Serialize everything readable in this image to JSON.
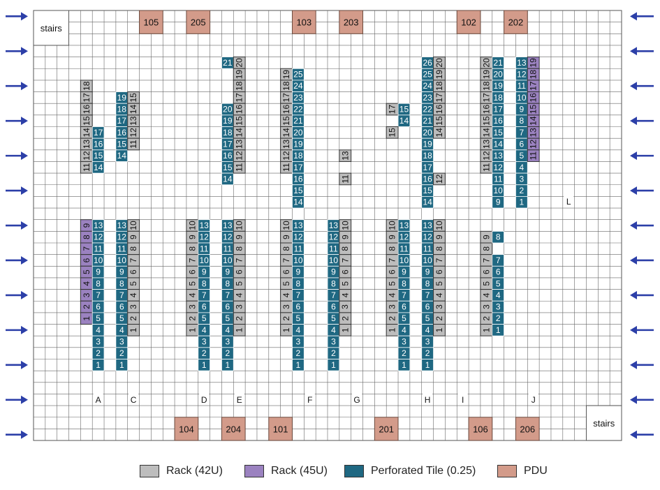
{
  "colors": {
    "rack42": "#bdbdbd",
    "rack45": "#9b82c0",
    "tile": "#1f6882",
    "pdu": "#d39b8a",
    "arrow": "#2c3fa8",
    "grid": "#555555"
  },
  "grid": {
    "cols": 50,
    "rows": 37
  },
  "labels": {
    "stairs_top": "stairs",
    "stairs_bottom": "stairs"
  },
  "legend": [
    {
      "key": "rack42",
      "label": "Rack (42U)"
    },
    {
      "key": "rack45",
      "label": "Rack (45U)"
    },
    {
      "key": "tile",
      "label": "Perforated Tile (0.25)"
    },
    {
      "key": "pdu",
      "label": "PDU"
    }
  ],
  "pdus_top": [
    {
      "label": "105",
      "col": 9
    },
    {
      "label": "205",
      "col": 13
    },
    {
      "label": "103",
      "col": 22
    },
    {
      "label": "203",
      "col": 26
    },
    {
      "label": "102",
      "col": 36
    },
    {
      "label": "202",
      "col": 40
    }
  ],
  "pdus_bottom": [
    {
      "label": "104",
      "col": 12
    },
    {
      "label": "204",
      "col": 16
    },
    {
      "label": "101",
      "col": 20
    },
    {
      "label": "201",
      "col": 29
    },
    {
      "label": "106",
      "col": 37
    },
    {
      "label": "206",
      "col": 41
    }
  ],
  "row_labels": [
    {
      "label": "A",
      "col": 5
    },
    {
      "label": "C",
      "col": 8
    },
    {
      "label": "D",
      "col": 14
    },
    {
      "label": "E",
      "col": 17
    },
    {
      "label": "F",
      "col": 23
    },
    {
      "label": "G",
      "col": 27
    },
    {
      "label": "H",
      "col": 33
    },
    {
      "label": "I",
      "col": 36
    },
    {
      "label": "J",
      "col": 42
    },
    {
      "label": "L",
      "col": 45
    }
  ],
  "racks": [
    {
      "t": "rack42",
      "col": 4,
      "row": 6,
      "n": [
        "18",
        "17",
        "16",
        "15",
        "14",
        "13",
        "12",
        "11"
      ]
    },
    {
      "t": "tile",
      "col": 5,
      "row": 10,
      "n": [
        "17",
        "16",
        "15",
        "14"
      ]
    },
    {
      "t": "tile",
      "col": 7,
      "row": 7,
      "n": [
        "19",
        "18",
        "17",
        "16",
        "15",
        "14"
      ]
    },
    {
      "t": "rack42",
      "col": 8,
      "row": 7,
      "n": [
        "15",
        "14",
        "13",
        "12",
        "11"
      ]
    },
    {
      "t": "tile",
      "col": 16,
      "row": 4,
      "n": [
        "21"
      ]
    },
    {
      "t": "tile",
      "col": 16,
      "row": 8,
      "n": [
        "20",
        "19",
        "18",
        "17",
        "16",
        "15",
        "14"
      ]
    },
    {
      "t": "rack42",
      "col": 17,
      "row": 4,
      "n": [
        "20",
        "19",
        "18",
        "17",
        "16",
        "15",
        "14",
        "13",
        "12",
        "11"
      ]
    },
    {
      "t": "rack42",
      "col": 21,
      "row": 5,
      "n": [
        "19",
        "18",
        "17",
        "16",
        "15",
        "14",
        "13",
        "12",
        "11"
      ]
    },
    {
      "t": "tile",
      "col": 22,
      "row": 5,
      "n": [
        "25",
        "24",
        "23",
        "22",
        "21",
        "20",
        "19",
        "18",
        "17",
        "16",
        "15",
        "14"
      ]
    },
    {
      "t": "rack42",
      "col": 26,
      "row": 12,
      "n": [
        "13"
      ]
    },
    {
      "t": "rack42",
      "col": 26,
      "row": 14,
      "n": [
        "11"
      ]
    },
    {
      "t": "rack42",
      "col": 30,
      "row": 8,
      "n": [
        "17"
      ]
    },
    {
      "t": "tile",
      "col": 31,
      "row": 8,
      "n": [
        "15",
        "14"
      ]
    },
    {
      "t": "rack42",
      "col": 30,
      "row": 10,
      "n": [
        "15"
      ]
    },
    {
      "t": "tile",
      "col": 33,
      "row": 4,
      "n": [
        "26",
        "25",
        "24",
        "23",
        "22",
        "21",
        "20",
        "19",
        "18",
        "17",
        "16",
        "15",
        "14"
      ]
    },
    {
      "t": "rack42",
      "col": 34,
      "row": 4,
      "n": [
        "20",
        "19",
        "18",
        "17",
        "16",
        "15",
        "14"
      ]
    },
    {
      "t": "rack42",
      "col": 34,
      "row": 14,
      "n": [
        "12"
      ]
    },
    {
      "t": "rack42",
      "col": 38,
      "row": 4,
      "n": [
        "20",
        "19",
        "18"
      ]
    },
    {
      "t": "rack42",
      "col": 38,
      "row": 8,
      "n": [
        "16",
        "15",
        "14",
        "13",
        "12",
        "11"
      ]
    },
    {
      "t": "rack42",
      "col": 38,
      "row": 7,
      "n": [
        "17"
      ]
    },
    {
      "t": "tile",
      "col": 39,
      "row": 4,
      "n": [
        "21",
        "20",
        "19",
        "18",
        "17",
        "16",
        "15",
        "14",
        "13",
        "12",
        "11",
        "10",
        "9"
      ]
    },
    {
      "t": "tile",
      "col": 41,
      "row": 4,
      "n": [
        "13",
        "12",
        "11",
        "10",
        "9",
        "8",
        "7",
        "6",
        "5",
        "4",
        "3",
        "2",
        "1"
      ]
    },
    {
      "t": "rack45",
      "col": 42,
      "row": 4,
      "n": [
        "19",
        "18",
        "17",
        "16",
        "15",
        "14",
        "13",
        "12",
        "11"
      ]
    },
    {
      "t": "rack45",
      "col": 4,
      "row": 18,
      "n": [
        "9",
        "8",
        "7",
        "6",
        "5",
        "4",
        "3",
        "2",
        "1"
      ]
    },
    {
      "t": "tile",
      "col": 5,
      "row": 18,
      "n": [
        "13",
        "12",
        "11",
        "10",
        "9",
        "8",
        "7",
        "6",
        "5",
        "4",
        "3",
        "2",
        "1"
      ]
    },
    {
      "t": "tile",
      "col": 7,
      "row": 18,
      "n": [
        "13",
        "12",
        "11",
        "10",
        "9",
        "8",
        "7",
        "6",
        "5",
        "4",
        "3",
        "2",
        "1"
      ]
    },
    {
      "t": "rack42",
      "col": 8,
      "row": 18,
      "n": [
        "10",
        "9",
        "8",
        "7",
        "6",
        "5",
        "4",
        "3",
        "2",
        "1"
      ]
    },
    {
      "t": "rack42",
      "col": 13,
      "row": 18,
      "n": [
        "10",
        "9",
        "8",
        "7",
        "6",
        "5",
        "4",
        "3",
        "2",
        "1"
      ]
    },
    {
      "t": "tile",
      "col": 14,
      "row": 18,
      "n": [
        "13",
        "12",
        "11",
        "10",
        "9",
        "8",
        "7",
        "6",
        "5",
        "4",
        "3",
        "2",
        "1"
      ]
    },
    {
      "t": "tile",
      "col": 16,
      "row": 18,
      "n": [
        "13",
        "12",
        "11",
        "10",
        "9",
        "8",
        "7",
        "6",
        "5",
        "4",
        "3",
        "2",
        "1"
      ]
    },
    {
      "t": "rack42",
      "col": 17,
      "row": 18,
      "n": [
        "10",
        "9",
        "8",
        "7",
        "6",
        "5",
        "4",
        "3",
        "2",
        "1"
      ]
    },
    {
      "t": "rack42",
      "col": 21,
      "row": 18,
      "n": [
        "10",
        "9",
        "8",
        "7",
        "6",
        "5",
        "4",
        "3",
        "2",
        "1"
      ]
    },
    {
      "t": "tile",
      "col": 22,
      "row": 18,
      "n": [
        "13",
        "12",
        "11",
        "10",
        "9",
        "8",
        "7",
        "6",
        "5",
        "4",
        "3",
        "2",
        "1"
      ]
    },
    {
      "t": "tile",
      "col": 25,
      "row": 18,
      "n": [
        "13",
        "12",
        "11",
        "10",
        "9",
        "8",
        "7",
        "6",
        "5",
        "4",
        "3",
        "2",
        "1"
      ]
    },
    {
      "t": "rack42",
      "col": 26,
      "row": 18,
      "n": [
        "10",
        "9",
        "8",
        "7",
        "6",
        "5",
        "4",
        "3",
        "2",
        "1"
      ]
    },
    {
      "t": "rack42",
      "col": 30,
      "row": 18,
      "n": [
        "10",
        "9",
        "8",
        "7",
        "6",
        "5",
        "4",
        "3",
        "2",
        "1"
      ]
    },
    {
      "t": "tile",
      "col": 31,
      "row": 18,
      "n": [
        "13",
        "12",
        "11",
        "10",
        "9",
        "8",
        "7",
        "6",
        "5",
        "4",
        "3",
        "2",
        "1"
      ]
    },
    {
      "t": "tile",
      "col": 33,
      "row": 18,
      "n": [
        "13",
        "12",
        "11",
        "10",
        "9",
        "8",
        "7",
        "6",
        "5",
        "4",
        "3",
        "2",
        "1"
      ]
    },
    {
      "t": "rack42",
      "col": 34,
      "row": 18,
      "n": [
        "10",
        "9",
        "8",
        "7",
        "6",
        "5",
        "4",
        "3",
        "2",
        "1"
      ]
    },
    {
      "t": "rack42",
      "col": 38,
      "row": 19,
      "n": [
        "9",
        "8",
        "7",
        "6",
        "5",
        "4",
        "3",
        "2",
        "1"
      ]
    },
    {
      "t": "tile",
      "col": 39,
      "row": 19,
      "n": [
        "8"
      ]
    },
    {
      "t": "tile",
      "col": 39,
      "row": 21,
      "n": [
        "7",
        "6",
        "5",
        "4",
        "3",
        "2"
      ]
    },
    {
      "t": "tile",
      "col": 39,
      "row": 27,
      "n": [
        "1"
      ]
    }
  ]
}
